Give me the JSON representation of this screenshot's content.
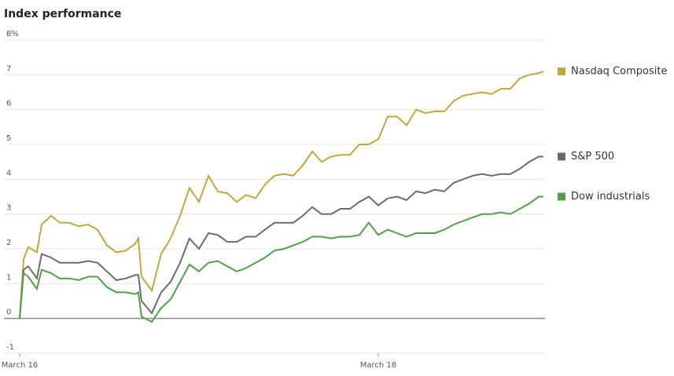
{
  "chart_data": {
    "type": "line",
    "title": "Index performance",
    "x": [
      0,
      0.022,
      0.048,
      0.096,
      0.123,
      0.175,
      0.224,
      0.276,
      0.329,
      0.382,
      0.434,
      0.487,
      0.539,
      0.592,
      0.645,
      0.662,
      0.68,
      0.737,
      0.789,
      0.842,
      0.895,
      0.947,
      1.0,
      1.053,
      1.105,
      1.158,
      1.211,
      1.263,
      1.316,
      1.368,
      1.421,
      1.474,
      1.526,
      1.579,
      1.632,
      1.684,
      1.737,
      1.789,
      1.842,
      1.895,
      1.947,
      2.0,
      2.053,
      2.105,
      2.158,
      2.211,
      2.263,
      2.316,
      2.368,
      2.421,
      2.474,
      2.526,
      2.579,
      2.632,
      2.684,
      2.737,
      2.789,
      2.842,
      2.895,
      2.921
    ],
    "series": [
      {
        "name": "Nasdaq Composite",
        "color": "#c4a73a",
        "values": [
          0,
          1.7,
          2.05,
          1.9,
          2.7,
          2.95,
          2.75,
          2.75,
          2.65,
          2.7,
          2.55,
          2.1,
          1.9,
          1.95,
          2.15,
          2.3,
          1.2,
          0.8,
          1.85,
          2.3,
          2.95,
          3.75,
          3.35,
          4.1,
          3.65,
          3.6,
          3.35,
          3.55,
          3.45,
          3.85,
          4.1,
          4.15,
          4.1,
          4.4,
          4.8,
          4.5,
          4.65,
          4.7,
          4.7,
          5.0,
          5.0,
          5.15,
          5.8,
          5.8,
          5.55,
          6.0,
          5.9,
          5.95,
          5.95,
          6.25,
          6.4,
          6.45,
          6.5,
          6.45,
          6.6,
          6.6,
          6.9,
          7.0,
          7.05,
          7.1
        ]
      },
      {
        "name": "S&P 500",
        "color": "#6b6b6b",
        "values": [
          0,
          1.4,
          1.5,
          1.15,
          1.85,
          1.75,
          1.6,
          1.6,
          1.6,
          1.65,
          1.6,
          1.35,
          1.1,
          1.15,
          1.25,
          1.25,
          0.5,
          0.15,
          0.75,
          1.05,
          1.6,
          2.3,
          2.0,
          2.45,
          2.4,
          2.2,
          2.2,
          2.35,
          2.35,
          2.55,
          2.75,
          2.75,
          2.75,
          2.95,
          3.2,
          3.0,
          3.0,
          3.15,
          3.15,
          3.35,
          3.5,
          3.25,
          3.45,
          3.5,
          3.4,
          3.65,
          3.6,
          3.7,
          3.65,
          3.9,
          4.0,
          4.1,
          4.15,
          4.1,
          4.15,
          4.15,
          4.3,
          4.5,
          4.65,
          4.65
        ]
      },
      {
        "name": "Dow industrials",
        "color": "#4fa048",
        "values": [
          0,
          1.3,
          1.2,
          0.85,
          1.4,
          1.3,
          1.15,
          1.15,
          1.1,
          1.2,
          1.2,
          0.9,
          0.75,
          0.75,
          0.7,
          0.75,
          0.05,
          -0.1,
          0.3,
          0.55,
          1.05,
          1.55,
          1.35,
          1.6,
          1.65,
          1.5,
          1.35,
          1.45,
          1.6,
          1.75,
          1.95,
          2.0,
          2.1,
          2.2,
          2.35,
          2.35,
          2.3,
          2.35,
          2.35,
          2.4,
          2.75,
          2.4,
          2.55,
          2.45,
          2.35,
          2.45,
          2.45,
          2.45,
          2.55,
          2.7,
          2.8,
          2.9,
          3.0,
          3.0,
          3.05,
          3.0,
          3.15,
          3.3,
          3.5,
          3.5
        ]
      }
    ],
    "xlim": [
      0,
      2.93
    ],
    "xticks": [
      {
        "value": 0,
        "label": "March 16"
      },
      {
        "value": 2,
        "label": "March 18"
      }
    ],
    "ylim": [
      -1,
      8
    ],
    "yticks": [
      -1,
      0,
      1,
      2,
      3,
      4,
      5,
      6,
      7,
      {
        "value": 8,
        "label": "8%"
      }
    ],
    "grid": true
  }
}
